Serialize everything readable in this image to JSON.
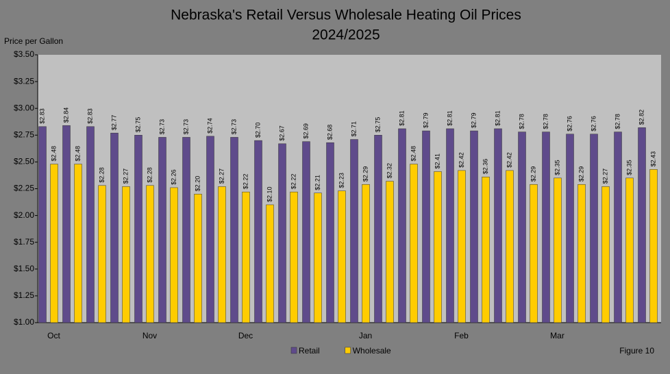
{
  "chart_data": {
    "type": "bar",
    "title": [
      "Nebraska's Retail Versus Wholesale Heating Oil Prices",
      "2024/2025"
    ],
    "y_label": "Price per Gallon",
    "annotation": "Figure 10",
    "categories": [
      "Oct",
      null,
      null,
      null,
      "Nov",
      null,
      null,
      null,
      "Dec",
      null,
      null,
      null,
      null,
      "Jan",
      null,
      null,
      null,
      "Feb",
      null,
      null,
      null,
      "Mar",
      null,
      null,
      null,
      null
    ],
    "series": [
      {
        "name": "Retail",
        "color": "#5f4b8b",
        "values": [
          2.83,
          2.84,
          2.83,
          2.77,
          2.75,
          2.73,
          2.73,
          2.74,
          2.73,
          2.7,
          2.67,
          2.69,
          2.68,
          2.71,
          2.75,
          2.81,
          2.79,
          2.81,
          2.79,
          2.81,
          2.78,
          2.78,
          2.76,
          2.76,
          2.78,
          2.82
        ],
        "value_labels": [
          "$2.83",
          "$2.84",
          "$2.83",
          "$2.77",
          "$2.75",
          "$2.73",
          "$2.73",
          "$2.74",
          "$2.73",
          "$2.70",
          "$2.67",
          "$2.69",
          "$2.68",
          "$2.71",
          "$2.75",
          "$2.81",
          "$2.79",
          "$2.81",
          "$2.79",
          "$2.81",
          "$2.78",
          "$2.78",
          "$2.76",
          "$2.76",
          "$2.78",
          "$2.82"
        ]
      },
      {
        "name": "Wholesale",
        "color": "#ffcc00",
        "values": [
          2.48,
          2.48,
          2.28,
          2.27,
          2.28,
          2.26,
          2.2,
          2.27,
          2.22,
          2.1,
          2.22,
          2.21,
          2.23,
          2.29,
          2.32,
          2.48,
          2.41,
          2.42,
          2.36,
          2.42,
          2.29,
          2.35,
          2.29,
          2.27,
          2.35,
          2.43
        ],
        "value_labels": [
          "$2.48",
          "$2.48",
          "$2.28",
          "$2.27",
          "$2.28",
          "$2.26",
          "$2.20",
          "$2.27",
          "$2.22",
          "$2.10",
          "$2.22",
          "$2.21",
          "$2.23",
          "$2.29",
          "$2.32",
          "$2.48",
          "$2.41",
          "$2.42",
          "$2.36",
          "$2.42",
          "$2.29",
          "$2.35",
          "$2.29",
          "$2.27",
          "$2.35",
          "$2.43"
        ]
      }
    ],
    "ylim": [
      1.0,
      3.5
    ],
    "yticks": [
      {
        "value": 1.0,
        "label": "$1.00"
      },
      {
        "value": 1.25,
        "label": "$1.25"
      },
      {
        "value": 1.5,
        "label": "$1.50"
      },
      {
        "value": 1.75,
        "label": "$1.75"
      },
      {
        "value": 2.0,
        "label": "$2.00"
      },
      {
        "value": 2.25,
        "label": "$2.25"
      },
      {
        "value": 2.5,
        "label": "$2.50"
      },
      {
        "value": 2.75,
        "label": "$2.75"
      },
      {
        "value": 3.0,
        "label": "$3.00"
      },
      {
        "value": 3.25,
        "label": "$3.25"
      },
      {
        "value": 3.5,
        "label": "$3.50"
      }
    ],
    "grid": false,
    "legend": "bottom"
  }
}
